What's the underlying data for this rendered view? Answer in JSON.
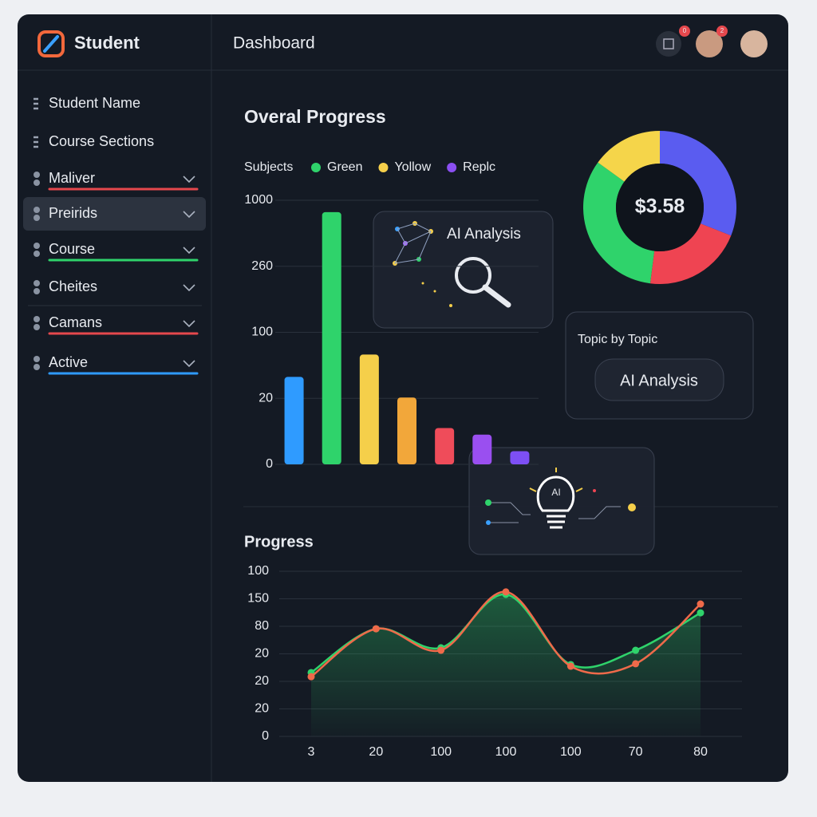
{
  "sidebar": {
    "brand": "Student",
    "items": [
      {
        "label": "Student Name"
      },
      {
        "label": "Course Sections"
      },
      {
        "label": "Maliver",
        "color": "#e5484d"
      },
      {
        "label": "Preirids",
        "active": true
      },
      {
        "label": "Course",
        "color": "#2fd36b"
      },
      {
        "label": "Cheites"
      },
      {
        "label": "Camans",
        "color": "#e5484d"
      },
      {
        "label": "Active",
        "color": "#2f9bff"
      }
    ]
  },
  "header": {
    "title": "Dashboard",
    "badges": [
      "0",
      "2"
    ]
  },
  "overview": {
    "title": "Overal Progress"
  },
  "cards": {
    "ai_analysis": "AI Analysis",
    "topic": {
      "title": "Topic by Topic",
      "button": "AI Analysis"
    },
    "bulb": "AI"
  },
  "chart_data": [
    {
      "type": "bar",
      "legend_title": "Subjects",
      "legend": [
        {
          "name": "Green",
          "color": "#2fd36b"
        },
        {
          "name": "Yollow",
          "color": "#f5cf4a"
        },
        {
          "name": "Replc",
          "color": "#8b4ff2"
        }
      ],
      "categories": [
        null,
        null,
        null,
        null,
        null,
        null,
        null
      ],
      "values": [
        46,
        867,
        73,
        21,
        11,
        9,
        4
      ],
      "colors": [
        "#2f9bff",
        "#2fd36b",
        "#f5cf4a",
        "#f2a73a",
        "#ef4c5a",
        "#9a4ff0",
        "#7d4ff5"
      ],
      "ylim": [
        0,
        1000
      ],
      "yticks": [
        0,
        20,
        100,
        260,
        1000
      ],
      "grid": true
    },
    {
      "type": "pie",
      "center_label": "$3.58",
      "values": [
        31,
        21,
        33,
        15
      ],
      "colors": [
        "#5a5cf0",
        "#ef4452",
        "#2fd36b",
        "#f5d54a"
      ]
    },
    {
      "type": "line",
      "title": "Progress",
      "categories": [
        "3",
        "20",
        "100",
        "100",
        "100",
        "70",
        "80"
      ],
      "series": [
        {
          "color": "#2fd36b",
          "values": [
            2.32,
            3.91,
            3.22,
            5.16,
            2.61,
            3.13,
            4.49
          ]
        },
        {
          "color": "#ef6a4a",
          "values": [
            2.17,
            3.91,
            3.13,
            5.25,
            2.55,
            2.64,
            4.81
          ]
        }
      ],
      "ylim": [
        0,
        6
      ],
      "yticks": [
        0,
        {
          "value": 1,
          "label": "20"
        },
        {
          "value": 2,
          "label": "20"
        },
        {
          "value": 3,
          "label": "20"
        },
        {
          "value": 4,
          "label": "80"
        },
        {
          "value": 5,
          "label": "150"
        },
        {
          "value": 6,
          "label": "100"
        }
      ],
      "grid": true
    }
  ]
}
